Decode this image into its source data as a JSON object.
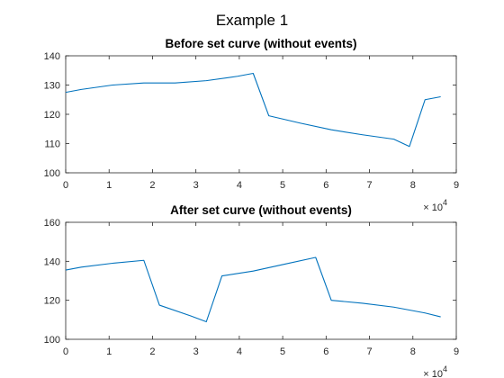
{
  "figure": {
    "title": "Example 1"
  },
  "chart_data": [
    {
      "type": "line",
      "title": "Before set curve (without events)",
      "xlabel": "",
      "ylabel": "",
      "xlim": [
        0,
        90000
      ],
      "ylim": [
        100,
        140
      ],
      "x_ticks": [
        0,
        10000,
        20000,
        30000,
        40000,
        50000,
        60000,
        70000,
        80000,
        90000
      ],
      "x_tick_labels": [
        "0",
        "1",
        "2",
        "3",
        "4",
        "5",
        "6",
        "7",
        "8",
        "9"
      ],
      "x_exponent_label": "× 10",
      "x_exponent": "4",
      "y_ticks": [
        100,
        110,
        120,
        130,
        140
      ],
      "y_tick_labels": [
        "100",
        "110",
        "120",
        "130",
        "140"
      ],
      "grid": false,
      "color": "#0072bd",
      "x": [
        0,
        3600,
        10800,
        18000,
        25200,
        32400,
        39600,
        43200,
        46800,
        54000,
        61200,
        68400,
        75600,
        79200,
        82800,
        86400
      ],
      "y": [
        127.5,
        128.5,
        130,
        130.7,
        130.7,
        131.5,
        133,
        134,
        119.5,
        117,
        114.7,
        113,
        111.5,
        109,
        125,
        126
      ]
    },
    {
      "type": "line",
      "title": "After set curve (without events)",
      "xlabel": "",
      "ylabel": "",
      "xlim": [
        0,
        90000
      ],
      "ylim": [
        100,
        160
      ],
      "x_ticks": [
        0,
        10000,
        20000,
        30000,
        40000,
        50000,
        60000,
        70000,
        80000,
        90000
      ],
      "x_tick_labels": [
        "0",
        "1",
        "2",
        "3",
        "4",
        "5",
        "6",
        "7",
        "8",
        "9"
      ],
      "x_exponent_label": "× 10",
      "x_exponent": "4",
      "y_ticks": [
        100,
        120,
        140,
        160
      ],
      "y_tick_labels": [
        "100",
        "120",
        "140",
        "160"
      ],
      "grid": false,
      "color": "#0072bd",
      "x": [
        0,
        3600,
        10800,
        18000,
        21600,
        28800,
        32400,
        36000,
        43200,
        50400,
        57600,
        61200,
        68400,
        75600,
        82800,
        86400
      ],
      "y": [
        135.5,
        137,
        139,
        140.5,
        117.5,
        112,
        109,
        132.5,
        135,
        138.5,
        142,
        120,
        118.5,
        116.5,
        113.5,
        111.5
      ]
    }
  ]
}
